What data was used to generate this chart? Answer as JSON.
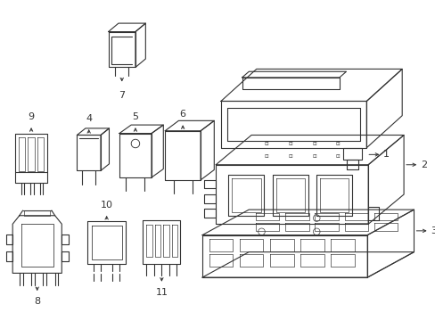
{
  "background_color": "#ffffff",
  "line_color": "#333333",
  "lw": 0.8,
  "fig_w": 4.89,
  "fig_h": 3.6,
  "dpi": 100,
  "components": {
    "item1_label": "1",
    "item2_label": "2",
    "item3_label": "3",
    "item4_label": "4",
    "item5_label": "5",
    "item6_label": "6",
    "item7_label": "7",
    "item8_label": "8",
    "item9_label": "9",
    "item10_label": "10",
    "item11_label": "11"
  }
}
